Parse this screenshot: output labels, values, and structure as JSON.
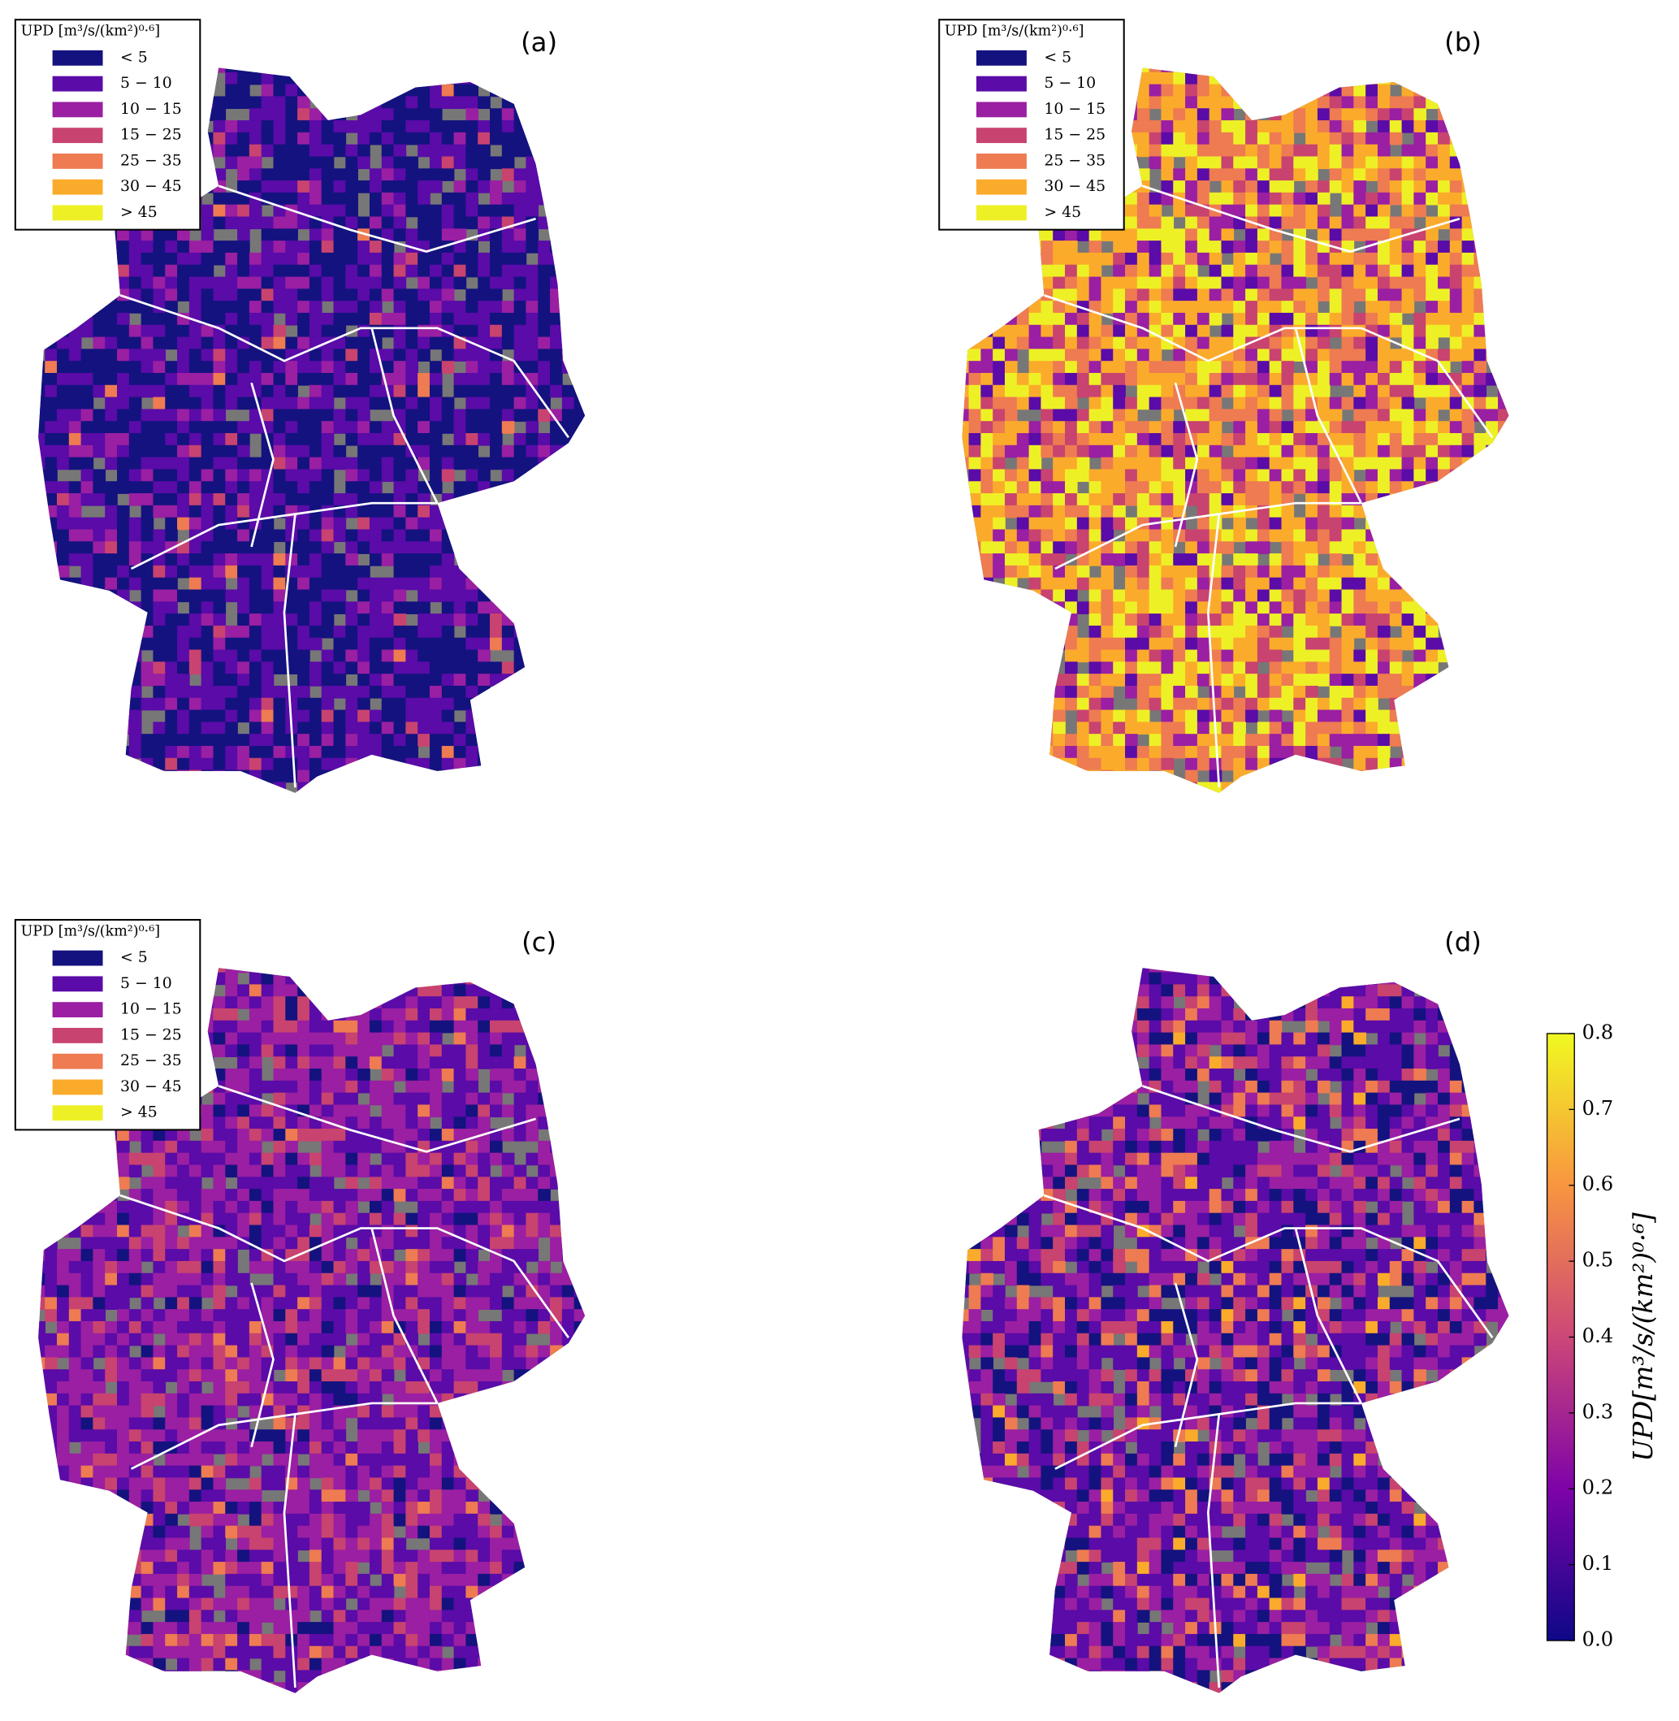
{
  "panels": [
    {
      "label": "(a)",
      "legend": {
        "title": "UPD [m³/s/(km²)⁰·⁶]",
        "items": [
          {
            "label": "< 5",
            "color": "#14127f"
          },
          {
            "label": "5 − 10",
            "color": "#5a0ba8"
          },
          {
            "label": "10 − 15",
            "color": "#9a1fa2"
          },
          {
            "label": "15 − 25",
            "color": "#c8436f"
          },
          {
            "label": "25 − 35",
            "color": "#ee7b51"
          },
          {
            "label": "30 − 45",
            "color": "#fbab2b"
          },
          {
            "label": "> 45",
            "color": "#eef026"
          }
        ]
      }
    },
    {
      "label": "(b)",
      "legend": {
        "title": "UPD [m³/s/(km²)⁰·⁶]",
        "items": [
          {
            "label": "< 5",
            "color": "#14127f"
          },
          {
            "label": "5 − 10",
            "color": "#5a0ba8"
          },
          {
            "label": "10 − 15",
            "color": "#9a1fa2"
          },
          {
            "label": "15 − 25",
            "color": "#c8436f"
          },
          {
            "label": "25 − 35",
            "color": "#ee7b51"
          },
          {
            "label": "30 − 45",
            "color": "#fbab2b"
          },
          {
            "label": "> 45",
            "color": "#eef026"
          }
        ]
      }
    },
    {
      "label": "(c)",
      "legend": {
        "title": "UPD [m³/s/(km²)⁰·⁶]",
        "items": [
          {
            "label": "< 5",
            "color": "#14127f"
          },
          {
            "label": "5 − 10",
            "color": "#5a0ba8"
          },
          {
            "label": "10 − 15",
            "color": "#9a1fa2"
          },
          {
            "label": "15 − 25",
            "color": "#c8436f"
          },
          {
            "label": "25 − 35",
            "color": "#ee7b51"
          },
          {
            "label": "30 − 45",
            "color": "#fbab2b"
          },
          {
            "label": "> 45",
            "color": "#eef026"
          }
        ]
      }
    },
    {
      "label": "(d)"
    }
  ],
  "colorbar": {
    "label": "UPD[m³/s/(km²)⁰·⁶]",
    "lim": [
      0,
      0.8
    ],
    "ticks": [
      {
        "value": 0,
        "label": "0.0"
      },
      {
        "value": 0.1,
        "label": "0.1"
      },
      {
        "value": 0.2,
        "label": "0.2"
      },
      {
        "value": 0.3,
        "label": "0.3"
      },
      {
        "value": 0.4,
        "label": "0.4"
      },
      {
        "value": 0.5,
        "label": "0.5"
      },
      {
        "value": 0.6,
        "label": "0.6"
      },
      {
        "value": 0.7,
        "label": "0.7"
      },
      {
        "value": 0.8,
        "label": "0.8"
      }
    ]
  }
}
